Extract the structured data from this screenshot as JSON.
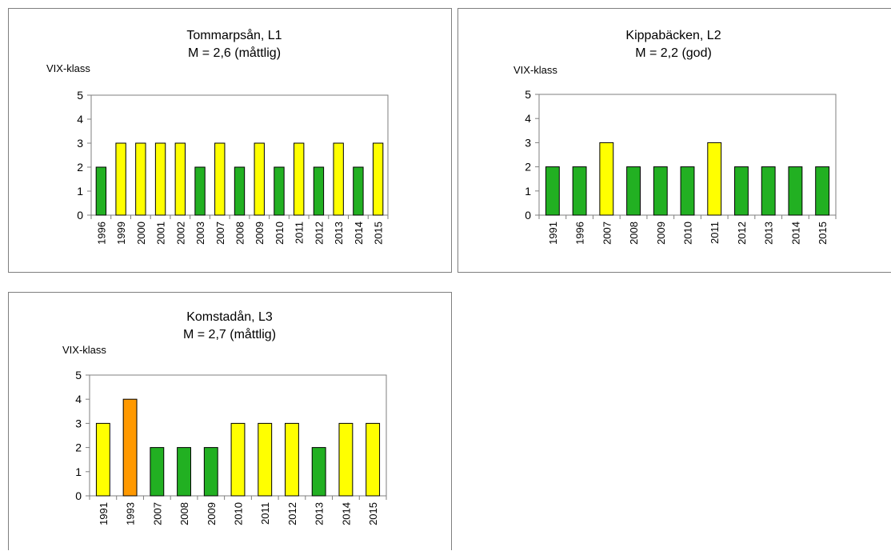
{
  "chart_data": [
    {
      "type": "bar",
      "title": "Tommarpsån, L1",
      "subtitle": "M = 2,6 (måttlig)",
      "ylabel": "VIX-klass",
      "ylim": [
        0,
        5
      ],
      "yticks": [
        "0",
        "1",
        "2",
        "3",
        "4",
        "5"
      ],
      "categories": [
        "1996",
        "1999",
        "2000",
        "2001",
        "2002",
        "2003",
        "2007",
        "2008",
        "2009",
        "2010",
        "2011",
        "2012",
        "2013",
        "2014",
        "2015"
      ],
      "values": [
        2,
        3,
        3,
        3,
        3,
        2,
        3,
        2,
        3,
        2,
        3,
        2,
        3,
        2,
        3
      ],
      "grid": false
    },
    {
      "type": "bar",
      "title": "Kippabäcken, L2",
      "subtitle": "M = 2,2 (god)",
      "ylabel": "VIX-klass",
      "ylim": [
        0,
        5
      ],
      "yticks": [
        "0",
        "1",
        "2",
        "3",
        "4",
        "5"
      ],
      "categories": [
        "1991",
        "1996",
        "2007",
        "2008",
        "2009",
        "2010",
        "2011",
        "2012",
        "2013",
        "2014",
        "2015"
      ],
      "values": [
        2,
        2,
        3,
        2,
        2,
        2,
        3,
        2,
        2,
        2,
        2
      ],
      "grid": false
    },
    {
      "type": "bar",
      "title": "Komstadån, L3",
      "subtitle": "M = 2,7 (måttlig)",
      "ylabel": "VIX-klass",
      "ylim": [
        0,
        5
      ],
      "yticks": [
        "0",
        "1",
        "2",
        "3",
        "4",
        "5"
      ],
      "categories": [
        "1991",
        "1993",
        "2007",
        "2008",
        "2009",
        "2010",
        "2011",
        "2012",
        "2013",
        "2014",
        "2015"
      ],
      "values": [
        3,
        4,
        2,
        2,
        2,
        3,
        3,
        3,
        2,
        3,
        3
      ],
      "grid": false
    }
  ],
  "class_colors": {
    "2": "#22b022",
    "3": "#ffff00",
    "4": "#ff9900"
  },
  "axis_color": "#7f7f7f"
}
